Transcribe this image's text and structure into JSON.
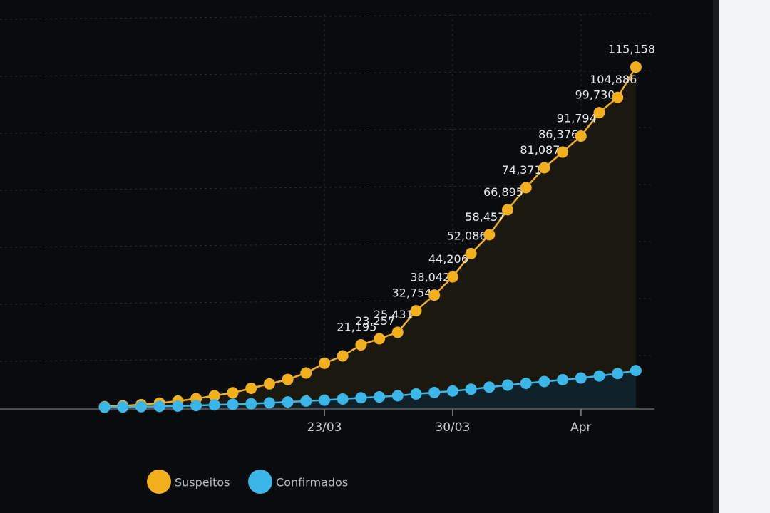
{
  "chart_data": {
    "type": "line",
    "categories": [
      null,
      null,
      null,
      null,
      null,
      null,
      null,
      null,
      null,
      null,
      null,
      null,
      "23/03",
      null,
      null,
      null,
      null,
      null,
      null,
      "30/03",
      null,
      null,
      null,
      null,
      null,
      null,
      "Apr",
      null,
      null,
      null
    ],
    "series": [
      {
        "name": "Suspeitos",
        "color": "#f2b01e",
        "values": [
          300,
          600,
          1000,
          1500,
          2200,
          3000,
          4000,
          5000,
          6500,
          8000,
          9500,
          11700,
          15000,
          17474,
          21195,
          23257,
          25431,
          32754,
          38042,
          44206,
          52086,
          58457,
          66895,
          74371,
          81087,
          86376,
          91794,
          99730,
          104886,
          115158
        ],
        "value_labels": [
          null,
          null,
          null,
          null,
          null,
          null,
          null,
          null,
          null,
          null,
          null,
          null,
          null,
          null,
          "21,195",
          "23,257",
          "25,431",
          "32,754",
          "38,042",
          "44,206",
          "52,086",
          "58,457",
          "66,895",
          "74,371",
          "81,087",
          "86,376",
          "91,794",
          "99,730",
          "104,886",
          "115,158"
        ]
      },
      {
        "name": "Confirmados",
        "color": "#3bb6e8",
        "values": [
          100,
          200,
          300,
          400,
          500,
          700,
          900,
          1100,
          1300,
          1600,
          1900,
          2200,
          2500,
          2900,
          3300,
          3600,
          4000,
          4600,
          5100,
          5600,
          6200,
          6900,
          7600,
          8200,
          8800,
          9400,
          10000,
          10700,
          11500,
          12500
        ]
      }
    ],
    "ylim": [
      0,
      120000
    ],
    "grid": true
  }
}
